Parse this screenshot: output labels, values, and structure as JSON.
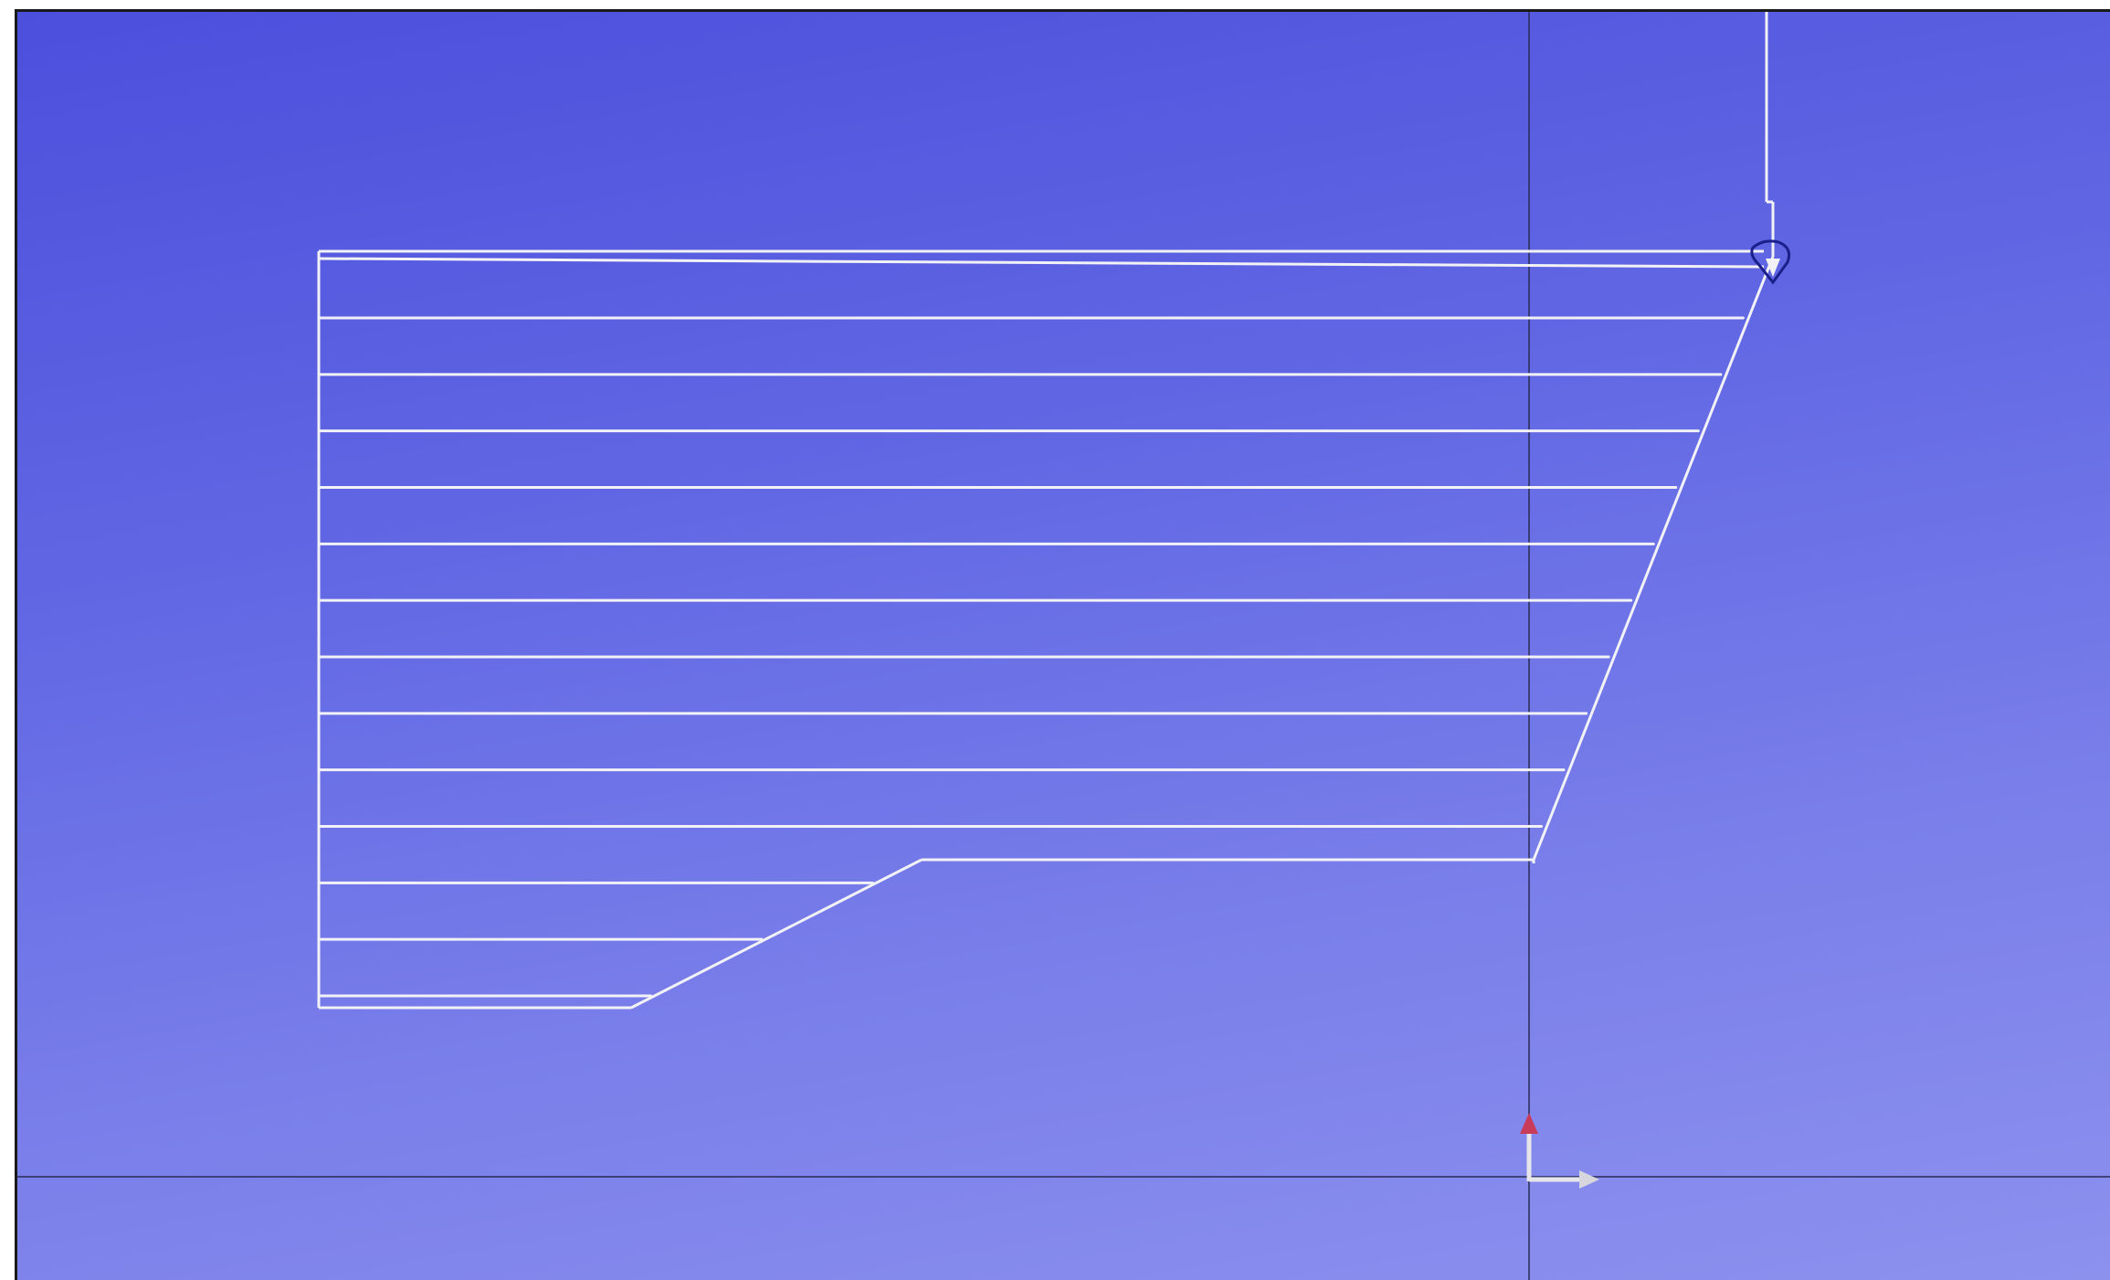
{
  "viewport": {
    "background_top": "#4c4fdc",
    "background_bottom": "#8c91ee",
    "toolpath_color": "#f2f2f6",
    "axis_line_color": "#2a2a55",
    "origin_axis_x_color": "#e6e6ea",
    "origin_axis_y_color": "#c83c5a",
    "tool_marker_color": "#1a1f8a"
  },
  "toolpath": {
    "roughing_pass_count": 13,
    "icons": [
      "tool-tip-icon",
      "coordinate-origin-icon"
    ]
  }
}
